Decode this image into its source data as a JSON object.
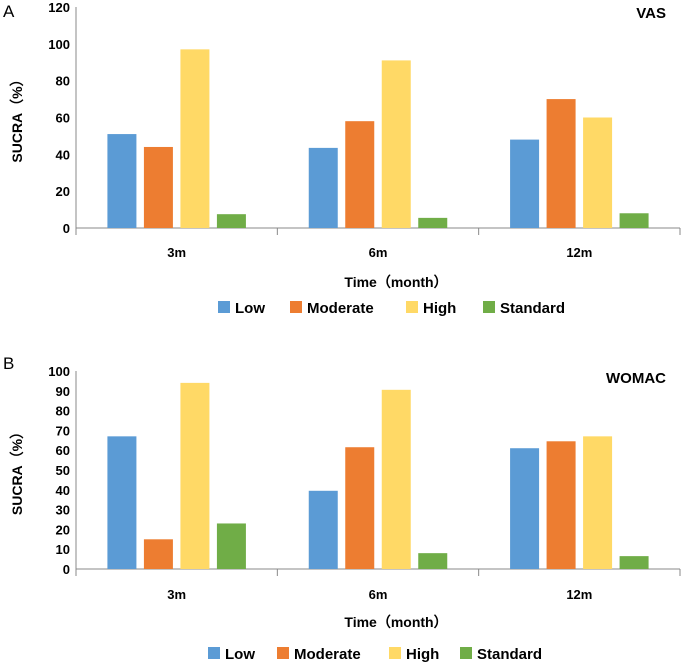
{
  "chart_data": [
    {
      "type": "bar",
      "panel_label": "A",
      "title": "VAS",
      "categories": [
        "3m",
        "6m",
        "12m"
      ],
      "series": [
        {
          "name": "Low",
          "color": "#5b9bd5",
          "values": [
            51,
            43.5,
            48
          ]
        },
        {
          "name": "Moderate",
          "color": "#ed7d31",
          "values": [
            44,
            58,
            70
          ]
        },
        {
          "name": "High",
          "color": "#ffd966",
          "values": [
            97,
            91,
            60
          ]
        },
        {
          "name": "Standard",
          "color": "#70ad47",
          "values": [
            7.5,
            5.5,
            8
          ]
        }
      ],
      "xlabel": "Time（month）",
      "ylabel": "SUCRA（%）",
      "ylim": [
        0,
        120
      ],
      "yticks": [
        "0",
        "20",
        "40",
        "60",
        "80",
        "100",
        "120"
      ],
      "legend": [
        "Low",
        "Moderate",
        "High",
        "Standard"
      ],
      "legend_position": "bottom"
    },
    {
      "type": "bar",
      "panel_label": "B",
      "title": "WOMAC",
      "categories": [
        "3m",
        "6m",
        "12m"
      ],
      "series": [
        {
          "name": "Low",
          "color": "#5b9bd5",
          "values": [
            67,
            39.5,
            61
          ]
        },
        {
          "name": "Moderate",
          "color": "#ed7d31",
          "values": [
            15,
            61.5,
            64.5
          ]
        },
        {
          "name": "High",
          "color": "#ffd966",
          "values": [
            94,
            90.5,
            67
          ]
        },
        {
          "name": "Standard",
          "color": "#70ad47",
          "values": [
            23,
            8,
            6.5
          ]
        }
      ],
      "xlabel": "Time（month）",
      "ylabel": "SUCRA（%）",
      "ylim": [
        0,
        100
      ],
      "yticks": [
        "0",
        "10",
        "20",
        "30",
        "40",
        "50",
        "60",
        "70",
        "80",
        "90",
        "100"
      ],
      "legend": [
        "Low",
        "Moderate",
        "High",
        "Standard"
      ],
      "legend_position": "bottom"
    }
  ]
}
